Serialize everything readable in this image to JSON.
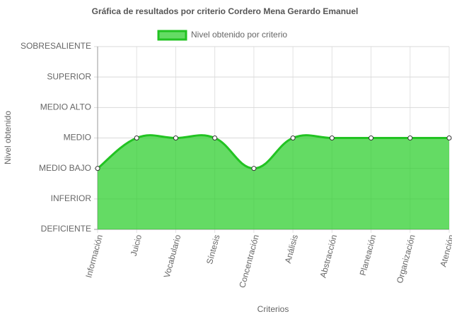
{
  "chart_data": {
    "type": "area",
    "title": "Gráfica de resultados por criterio Cordero Mena Gerardo Emanuel",
    "x_label": "Criterios",
    "y_label": "Nivel obtenido",
    "categories": [
      "Información",
      "Juicio",
      "Vocabulario",
      "Síntesis",
      "Concentración",
      "Análisis",
      "Abstracción",
      "Planeación",
      "Organización",
      "Atención"
    ],
    "series": [
      {
        "name": "Nivel obtenido por criterio",
        "color": "#22c322",
        "fill": "rgba(40,205,40,0.72)",
        "values": [
          2,
          3,
          3,
          3,
          2,
          3,
          3,
          3,
          3,
          3
        ]
      }
    ],
    "ylim": [
      0,
      6
    ],
    "yticks": [
      {
        "value": 0,
        "label": "DEFICIENTE"
      },
      {
        "value": 1,
        "label": "INFERIOR"
      },
      {
        "value": 2,
        "label": "MEDIO BAJO"
      },
      {
        "value": 3,
        "label": "MEDIO"
      },
      {
        "value": 4,
        "label": "MEDIO ALTO"
      },
      {
        "value": 5,
        "label": "SUPERIOR"
      },
      {
        "value": 6,
        "label": "SOBRESALIENTE"
      }
    ],
    "grid": true,
    "legend": "top"
  }
}
